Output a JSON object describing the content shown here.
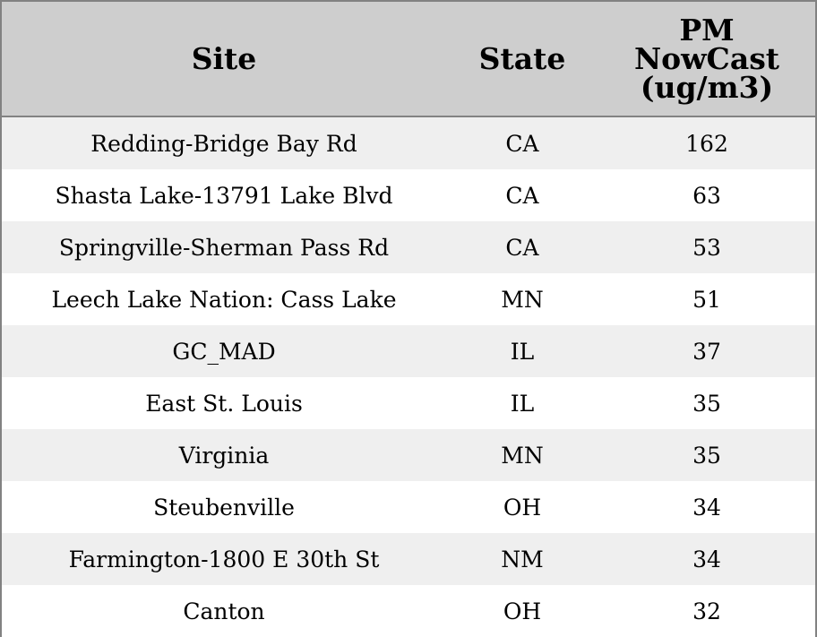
{
  "chart_data": {
    "type": "table",
    "columns": [
      "Site",
      "State",
      "PM\nNowCast\n(ug/m3)"
    ],
    "rows": [
      {
        "site": "Redding-Bridge Bay Rd",
        "state": "CA",
        "pm": "162"
      },
      {
        "site": "Shasta Lake-13791 Lake Blvd",
        "state": "CA",
        "pm": "63"
      },
      {
        "site": "Springville-Sherman Pass Rd",
        "state": "CA",
        "pm": "53"
      },
      {
        "site": "Leech Lake Nation: Cass Lake",
        "state": "MN",
        "pm": "51"
      },
      {
        "site": "GC_MAD",
        "state": "IL",
        "pm": "37"
      },
      {
        "site": "East St. Louis",
        "state": "IL",
        "pm": "35"
      },
      {
        "site": "Virginia",
        "state": "MN",
        "pm": "35"
      },
      {
        "site": "Steubenville",
        "state": "OH",
        "pm": "34"
      },
      {
        "site": "Farmington-1800 E 30th St",
        "state": "NM",
        "pm": "34"
      },
      {
        "site": "Canton",
        "state": "OH",
        "pm": "32"
      }
    ]
  },
  "colors": {
    "header_bg": "#cecece",
    "row_stripe": "#efefef",
    "row_plain": "#ffffff",
    "border": "#828282"
  }
}
